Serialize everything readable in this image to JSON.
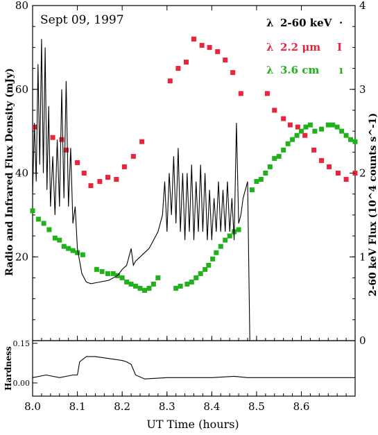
{
  "chart_data": {
    "type": "scatter",
    "title": "Sept 09, 1997",
    "xlabel": "UT Time (hours)",
    "ylabel_left": "Radio and Infrared Flux Density (mJy)",
    "ylabel_right": "2-60 keV Flux (10^4 counts s^-1)",
    "ylabel_hardness": "Hardness",
    "xlim": [
      8.0,
      8.72
    ],
    "ylim_left": [
      0,
      80
    ],
    "ylim_right": [
      0,
      4
    ],
    "ylim_hardness": [
      -0.05,
      0.16
    ],
    "x_ticks": [
      "8.0",
      "8.1",
      "8.2",
      "8.3",
      "8.4",
      "8.5",
      "8.6"
    ],
    "x_tick_values": [
      8.0,
      8.1,
      8.2,
      8.3,
      8.4,
      8.5,
      8.6
    ],
    "y_ticks_left": [
      "20",
      "40",
      "60",
      "80"
    ],
    "y_tick_values_left": [
      20,
      40,
      60,
      80
    ],
    "y_ticks_right": [
      "0",
      "1",
      "2",
      "3",
      "4"
    ],
    "y_tick_values_right": [
      0,
      1,
      2,
      3,
      4
    ],
    "hardness_ticks": [
      "0.00",
      "0.15"
    ],
    "hardness_tick_values": [
      0.0,
      0.15
    ],
    "legend_position": "top-right",
    "legend": [
      {
        "lambda": "λ",
        "label": "2-60 keV",
        "marker": "·",
        "color": "#000000"
      },
      {
        "lambda": "λ",
        "label": "2.2 μm",
        "marker": "I",
        "color": "#e8253c"
      },
      {
        "lambda": "λ",
        "label": "3.6 cm",
        "marker": "ı",
        "color": "#22b11c"
      }
    ],
    "series": [
      {
        "name": "2.2 μm",
        "axis": "left",
        "color": "#e8253c",
        "points": [
          [
            8.005,
            51
          ],
          [
            8.045,
            48.5
          ],
          [
            8.065,
            48
          ],
          [
            8.075,
            45.5
          ],
          [
            8.1,
            42.5
          ],
          [
            8.115,
            40
          ],
          [
            8.13,
            37
          ],
          [
            8.15,
            38
          ],
          [
            8.168,
            39
          ],
          [
            8.187,
            38.5
          ],
          [
            8.205,
            41.5
          ],
          [
            8.225,
            44
          ],
          [
            8.244,
            47.5
          ],
          [
            8.307,
            62
          ],
          [
            8.325,
            65
          ],
          [
            8.343,
            66.5
          ],
          [
            8.36,
            72
          ],
          [
            8.378,
            70.5
          ],
          [
            8.395,
            70
          ],
          [
            8.413,
            69
          ],
          [
            8.43,
            67
          ],
          [
            8.447,
            64
          ],
          [
            8.465,
            59
          ],
          [
            8.524,
            59
          ],
          [
            8.54,
            55
          ],
          [
            8.56,
            53
          ],
          [
            8.575,
            51.5
          ],
          [
            8.592,
            51
          ],
          [
            8.608,
            49
          ],
          [
            8.628,
            45.5
          ],
          [
            8.645,
            43
          ],
          [
            8.662,
            41.5
          ],
          [
            8.682,
            40
          ],
          [
            8.7,
            38.5
          ],
          [
            8.72,
            40
          ]
        ]
      },
      {
        "name": "3.6 cm",
        "axis": "left",
        "color": "#22b11c",
        "points": [
          [
            8.0,
            31
          ],
          [
            8.013,
            29
          ],
          [
            8.025,
            28
          ],
          [
            8.037,
            26.5
          ],
          [
            8.05,
            24.5
          ],
          [
            8.06,
            24
          ],
          [
            8.07,
            22.5
          ],
          [
            8.08,
            22
          ],
          [
            8.09,
            21.5
          ],
          [
            8.1,
            21
          ],
          [
            8.112,
            20.5
          ],
          [
            8.143,
            17
          ],
          [
            8.155,
            16.5
          ],
          [
            8.168,
            16
          ],
          [
            8.18,
            16
          ],
          [
            8.19,
            15.5
          ],
          [
            8.2,
            15
          ],
          [
            8.21,
            14
          ],
          [
            8.22,
            13.5
          ],
          [
            8.23,
            13
          ],
          [
            8.24,
            12.5
          ],
          [
            8.25,
            12
          ],
          [
            8.26,
            12.5
          ],
          [
            8.27,
            13.5
          ],
          [
            8.28,
            15
          ],
          [
            8.32,
            12.5
          ],
          [
            8.33,
            13
          ],
          [
            8.345,
            13.5
          ],
          [
            8.355,
            14
          ],
          [
            8.365,
            15
          ],
          [
            8.375,
            16
          ],
          [
            8.385,
            17
          ],
          [
            8.393,
            18
          ],
          [
            8.402,
            19.5
          ],
          [
            8.41,
            21
          ],
          [
            8.42,
            22.5
          ],
          [
            8.43,
            24
          ],
          [
            8.44,
            25
          ],
          [
            8.45,
            26
          ],
          [
            8.46,
            26.5
          ],
          [
            8.49,
            36
          ],
          [
            8.5,
            38
          ],
          [
            8.51,
            38.5
          ],
          [
            8.52,
            40
          ],
          [
            8.53,
            41.5
          ],
          [
            8.54,
            43.5
          ],
          [
            8.55,
            44
          ],
          [
            8.56,
            45.5
          ],
          [
            8.57,
            47
          ],
          [
            8.58,
            48
          ],
          [
            8.59,
            49
          ],
          [
            8.6,
            50
          ],
          [
            8.61,
            51
          ],
          [
            8.62,
            51.5
          ],
          [
            8.63,
            50
          ],
          [
            8.645,
            50.5
          ],
          [
            8.66,
            51.5
          ],
          [
            8.67,
            51.5
          ],
          [
            8.68,
            51
          ],
          [
            8.69,
            50
          ],
          [
            8.7,
            49
          ],
          [
            8.71,
            48
          ],
          [
            8.72,
            47.5
          ]
        ]
      },
      {
        "name": "2-60 keV",
        "axis": "right",
        "color": "#000000",
        "points": [
          [
            8.0,
            1.75
          ],
          [
            8.004,
            2.6
          ],
          [
            8.008,
            1.9
          ],
          [
            8.012,
            3.3
          ],
          [
            8.016,
            2.1
          ],
          [
            8.02,
            3.6
          ],
          [
            8.024,
            2.0
          ],
          [
            8.028,
            3.5
          ],
          [
            8.032,
            1.8
          ],
          [
            8.036,
            2.8
          ],
          [
            8.04,
            1.6
          ],
          [
            8.045,
            2.2
          ],
          [
            8.05,
            1.5
          ],
          [
            8.055,
            2.4
          ],
          [
            8.06,
            1.6
          ],
          [
            8.065,
            3.0
          ],
          [
            8.07,
            1.7
          ],
          [
            8.075,
            3.1
          ],
          [
            8.08,
            1.6
          ],
          [
            8.085,
            2.3
          ],
          [
            8.09,
            1.4
          ],
          [
            8.095,
            1.6
          ],
          [
            8.1,
            1.1
          ],
          [
            8.11,
            0.8
          ],
          [
            8.12,
            0.7
          ],
          [
            8.13,
            0.68
          ],
          [
            8.15,
            0.7
          ],
          [
            8.17,
            0.72
          ],
          [
            8.19,
            0.78
          ],
          [
            8.2,
            0.85
          ],
          [
            8.21,
            0.9
          ],
          [
            8.215,
            1.0
          ],
          [
            8.22,
            1.1
          ],
          [
            8.225,
            0.9
          ],
          [
            8.23,
            0.95
          ],
          [
            8.24,
            1.0
          ],
          [
            8.25,
            1.05
          ],
          [
            8.26,
            1.1
          ],
          [
            8.27,
            1.2
          ],
          [
            8.28,
            1.3
          ],
          [
            8.29,
            1.5
          ],
          [
            8.295,
            1.9
          ],
          [
            8.3,
            1.3
          ],
          [
            8.305,
            2.0
          ],
          [
            8.31,
            1.5
          ],
          [
            8.315,
            2.2
          ],
          [
            8.32,
            1.4
          ],
          [
            8.325,
            2.3
          ],
          [
            8.33,
            1.3
          ],
          [
            8.335,
            2.0
          ],
          [
            8.34,
            1.2
          ],
          [
            8.345,
            2.0
          ],
          [
            8.35,
            1.3
          ],
          [
            8.355,
            2.1
          ],
          [
            8.36,
            1.2
          ],
          [
            8.365,
            1.9
          ],
          [
            8.37,
            1.3
          ],
          [
            8.375,
            2.1
          ],
          [
            8.38,
            1.3
          ],
          [
            8.385,
            2.0
          ],
          [
            8.39,
            1.2
          ],
          [
            8.395,
            1.8
          ],
          [
            8.4,
            1.2
          ],
          [
            8.405,
            1.7
          ],
          [
            8.41,
            1.3
          ],
          [
            8.415,
            1.9
          ],
          [
            8.42,
            1.3
          ],
          [
            8.425,
            1.8
          ],
          [
            8.43,
            1.3
          ],
          [
            8.435,
            1.9
          ],
          [
            8.44,
            1.3
          ],
          [
            8.445,
            1.7
          ],
          [
            8.45,
            1.2
          ],
          [
            8.455,
            2.6
          ],
          [
            8.46,
            1.4
          ],
          [
            8.465,
            1.5
          ],
          [
            8.47,
            1.7
          ],
          [
            8.475,
            1.8
          ],
          [
            8.48,
            1.9
          ],
          [
            8.485,
            0.0
          ],
          [
            8.72,
            0.0
          ]
        ]
      },
      {
        "name": "Hardness",
        "axis": "hardness",
        "points": [
          [
            8.0,
            0.02
          ],
          [
            8.03,
            0.03
          ],
          [
            8.06,
            0.02
          ],
          [
            8.09,
            0.03
          ],
          [
            8.1,
            0.03
          ],
          [
            8.105,
            0.08
          ],
          [
            8.12,
            0.1
          ],
          [
            8.14,
            0.1
          ],
          [
            8.16,
            0.095
          ],
          [
            8.18,
            0.09
          ],
          [
            8.2,
            0.085
          ],
          [
            8.21,
            0.08
          ],
          [
            8.22,
            0.07
          ],
          [
            8.23,
            0.03
          ],
          [
            8.25,
            0.015
          ],
          [
            8.3,
            0.02
          ],
          [
            8.35,
            0.02
          ],
          [
            8.4,
            0.02
          ],
          [
            8.45,
            0.025
          ],
          [
            8.48,
            0.02
          ],
          [
            8.72,
            0.02
          ]
        ]
      }
    ]
  }
}
